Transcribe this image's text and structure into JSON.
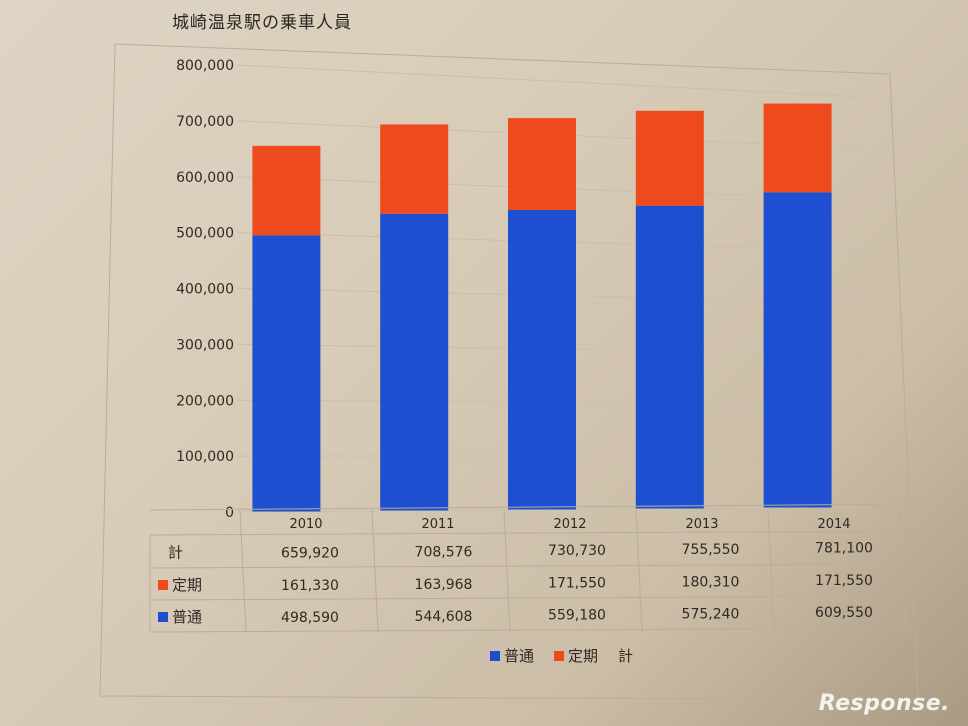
{
  "chart_data": {
    "type": "bar",
    "stacked": true,
    "title": "城崎温泉駅の乗車人員",
    "categories": [
      "2010",
      "2011",
      "2012",
      "2013",
      "2014"
    ],
    "series": [
      {
        "name": "普通",
        "color": "#1d4fd0",
        "values": [
          498590,
          544608,
          559180,
          575240,
          609550
        ]
      },
      {
        "name": "定期",
        "color": "#ee4a1e",
        "values": [
          161330,
          163968,
          171550,
          180310,
          171550
        ]
      }
    ],
    "total_label": "計",
    "totals": [
      659920,
      708576,
      730730,
      755550,
      781100
    ],
    "ylim": [
      0,
      800000
    ],
    "yticks": [
      "0",
      "100,000",
      "200,000",
      "300,000",
      "400,000",
      "500,000",
      "600,000",
      "700,000",
      "800,000"
    ],
    "table": {
      "rows": [
        {
          "label": "計",
          "values": [
            "659,920",
            "708,576",
            "730,730",
            "755,550",
            "781,100"
          ]
        },
        {
          "label": "定期",
          "values": [
            "161,330",
            "163,968",
            "171,550",
            "180,310",
            "171,550"
          ]
        },
        {
          "label": "普通",
          "values": [
            "498,590",
            "544,608",
            "559,180",
            "575,240",
            "609,550"
          ]
        }
      ]
    },
    "legend": [
      "普通",
      "定期",
      "計"
    ],
    "grid": true
  },
  "watermark": "Response."
}
